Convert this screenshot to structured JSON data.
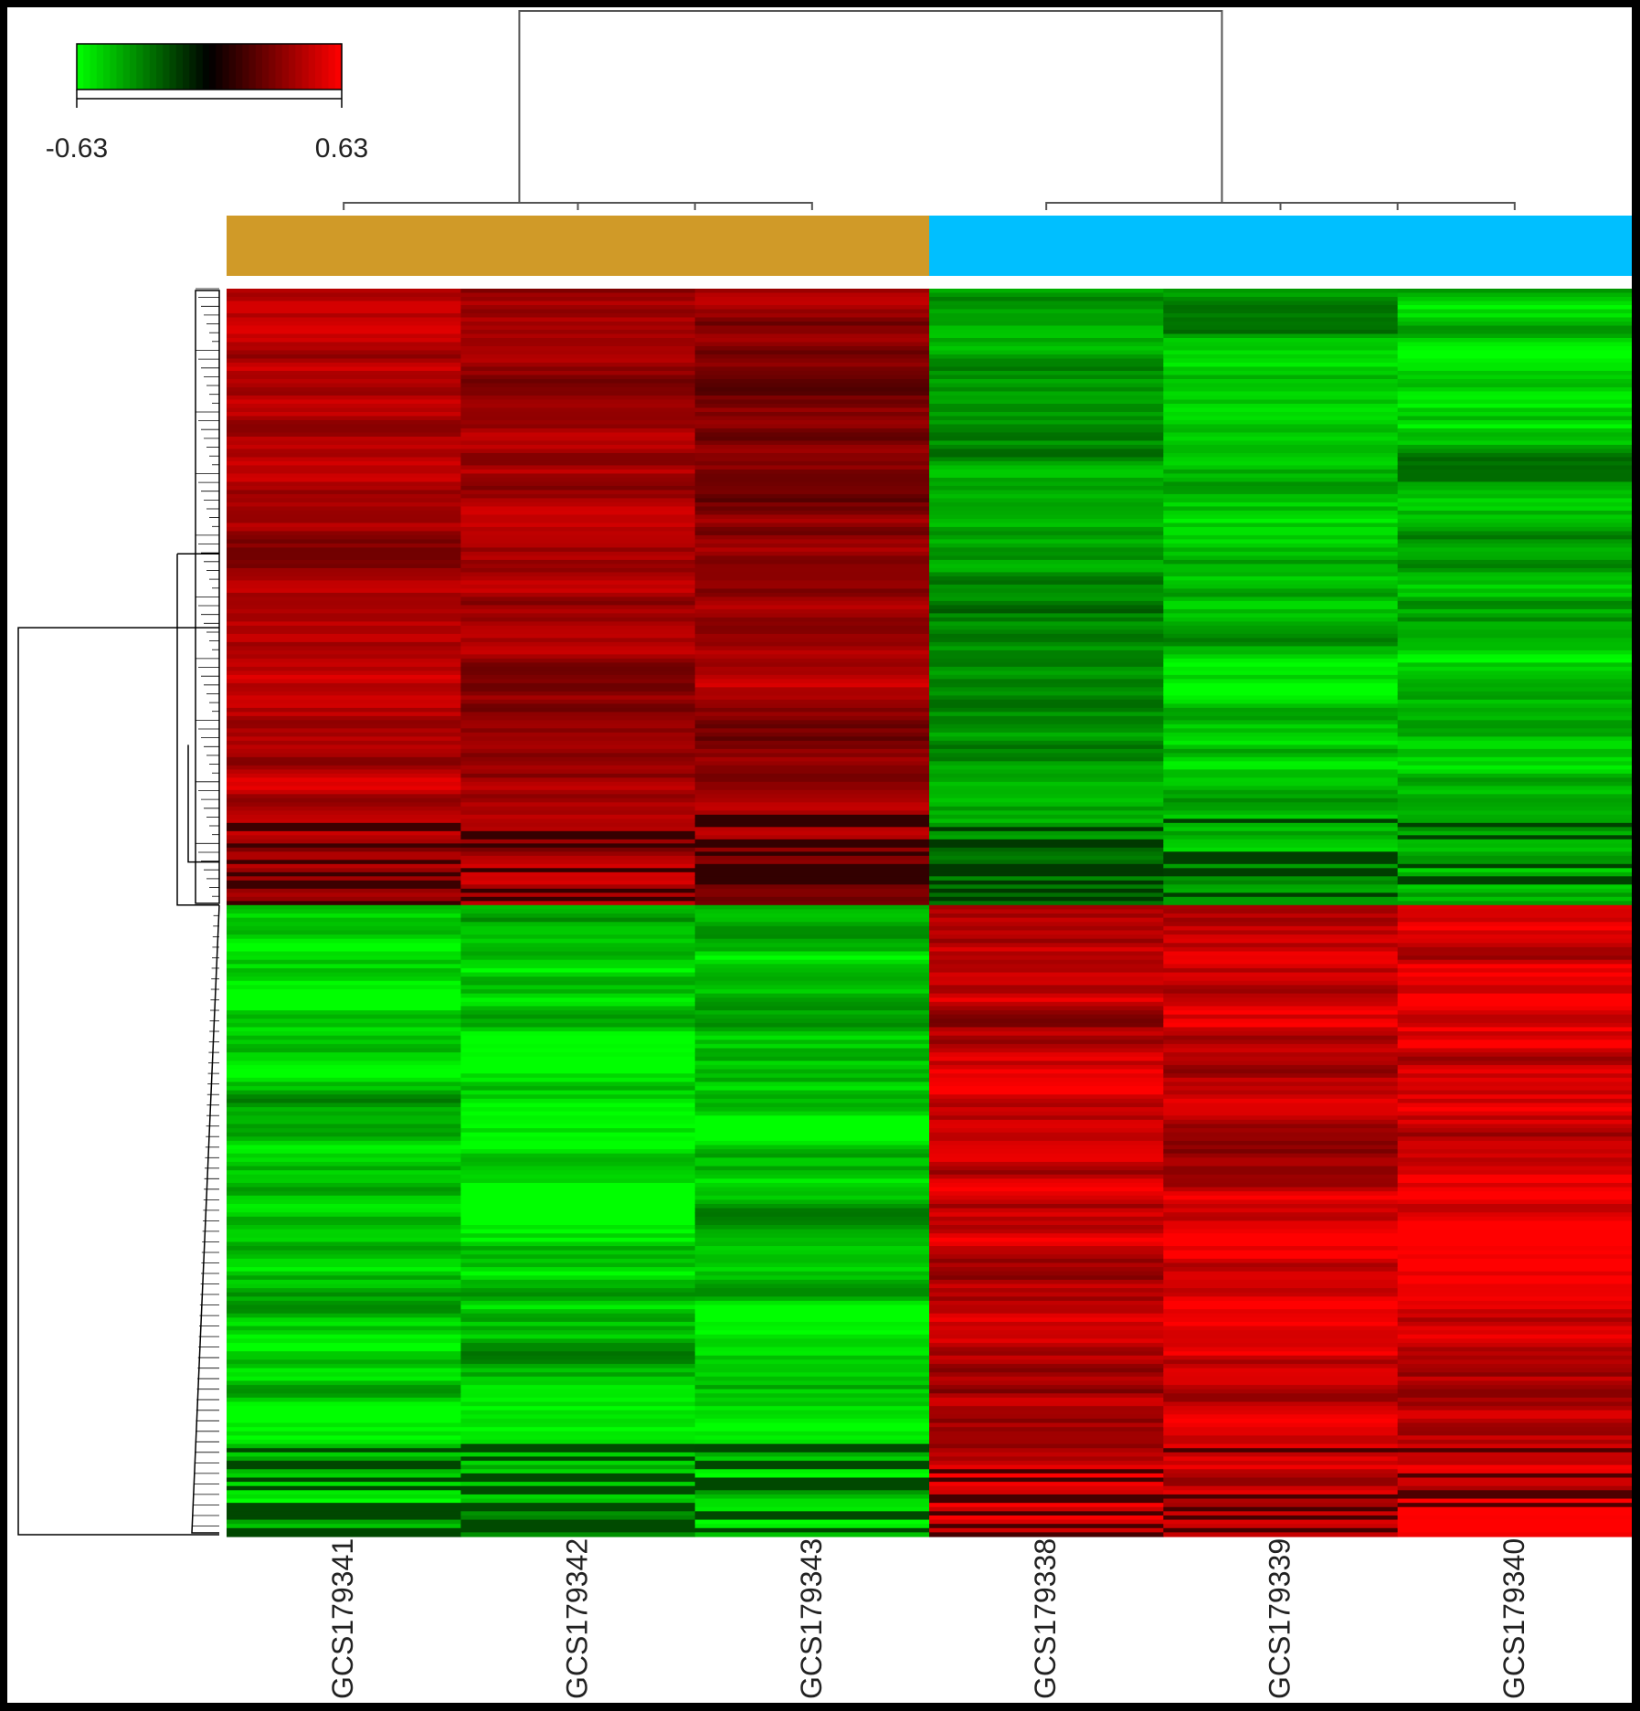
{
  "chart_data": {
    "type": "heatmap",
    "title": "",
    "xlabel": "",
    "ylabel": "",
    "color_scale": {
      "min": -0.63,
      "max": 0.63,
      "min_label": "-0.63",
      "max_label": "0.63",
      "low_color": "#00ff00",
      "mid_color": "#000000",
      "high_color": "#ff0000"
    },
    "columns": [
      "GCS179341",
      "GCS179342",
      "GCS179343",
      "GCS179338",
      "GCS179339",
      "GCS179340"
    ],
    "column_groups": [
      {
        "columns": [
          "GCS179341",
          "GCS179342",
          "GCS179343"
        ],
        "color": "#d09a28"
      },
      {
        "columns": [
          "GCS179338",
          "GCS179339",
          "GCS179340"
        ],
        "color": "#00bfff"
      }
    ],
    "row_blocks": [
      {
        "rows_fraction": 0.494,
        "values": [
          0.42,
          0.38,
          0.36,
          -0.4,
          -0.44,
          -0.46
        ]
      },
      {
        "rows_fraction": 0.506,
        "values": [
          -0.5,
          -0.52,
          -0.51,
          0.48,
          0.5,
          0.55
        ]
      }
    ],
    "column_dendrogram": "two clusters: (GCS179341, (GCS179342, GCS179343)) and (GCS179338, (GCS179339, GCS179340))",
    "row_dendrogram": "two main clusters matching the two row blocks",
    "grid": false,
    "legend_position": "top-left"
  }
}
